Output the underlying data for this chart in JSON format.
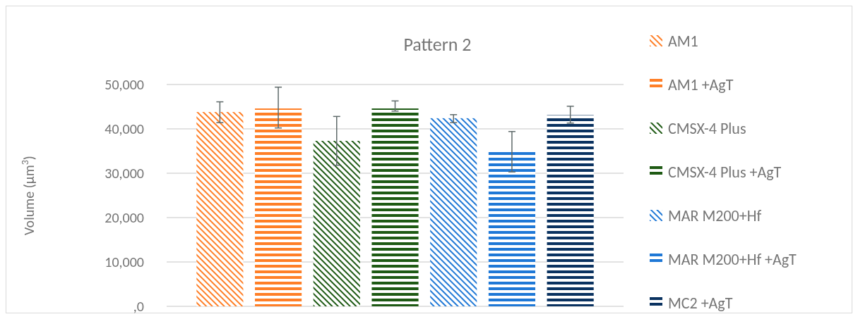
{
  "chart_data": {
    "type": "bar",
    "title": "Pattern 2",
    "ylabel": "Volume (µm$^{3}$)",
    "categories": [
      null
    ],
    "ylim": [
      0,
      50000
    ],
    "yticks": [
      {
        "value": 0,
        "label": ",0"
      },
      {
        "value": 10000,
        "label": "10,000"
      },
      {
        "value": 20000,
        "label": "20,000"
      },
      {
        "value": 30000,
        "label": "30,000"
      },
      {
        "value": 40000,
        "label": "40,000"
      },
      {
        "value": 50000,
        "label": "50,000"
      }
    ],
    "grid": "y",
    "legend": "right",
    "series": [
      {
        "name": "AM1",
        "color": "#ff7f27",
        "values": [
          43800
        ],
        "errors": [
          [
            41400,
            46100
          ]
        ]
      },
      {
        "name": "AM1 +AgT",
        "color": "#ff7f27",
        "values": [
          44600
        ],
        "errors": [
          [
            40200,
            49400
          ]
        ]
      },
      {
        "name": "CMSX-4 Plus",
        "color": "#1e5a14",
        "values": [
          37300
        ],
        "errors": [
          [
            31800,
            42800
          ]
        ]
      },
      {
        "name": "CMSX-4 Plus +AgT",
        "color": "#1e5a14",
        "values": [
          44600
        ],
        "errors": [
          [
            44000,
            46300
          ]
        ]
      },
      {
        "name": "MAR M200+Hf",
        "color": "#1f78d6",
        "values": [
          42400
        ],
        "errors": [
          [
            41400,
            43200
          ]
        ]
      },
      {
        "name": "MAR M200+Hf +AgT",
        "color": "#1f78d6",
        "values": [
          34900
        ],
        "errors": [
          [
            30300,
            39400
          ]
        ]
      },
      {
        "name": "MC2 +AgT",
        "color": "#0a3260",
        "values": [
          43100
        ],
        "errors": [
          [
            41300,
            45100
          ]
        ]
      }
    ]
  }
}
